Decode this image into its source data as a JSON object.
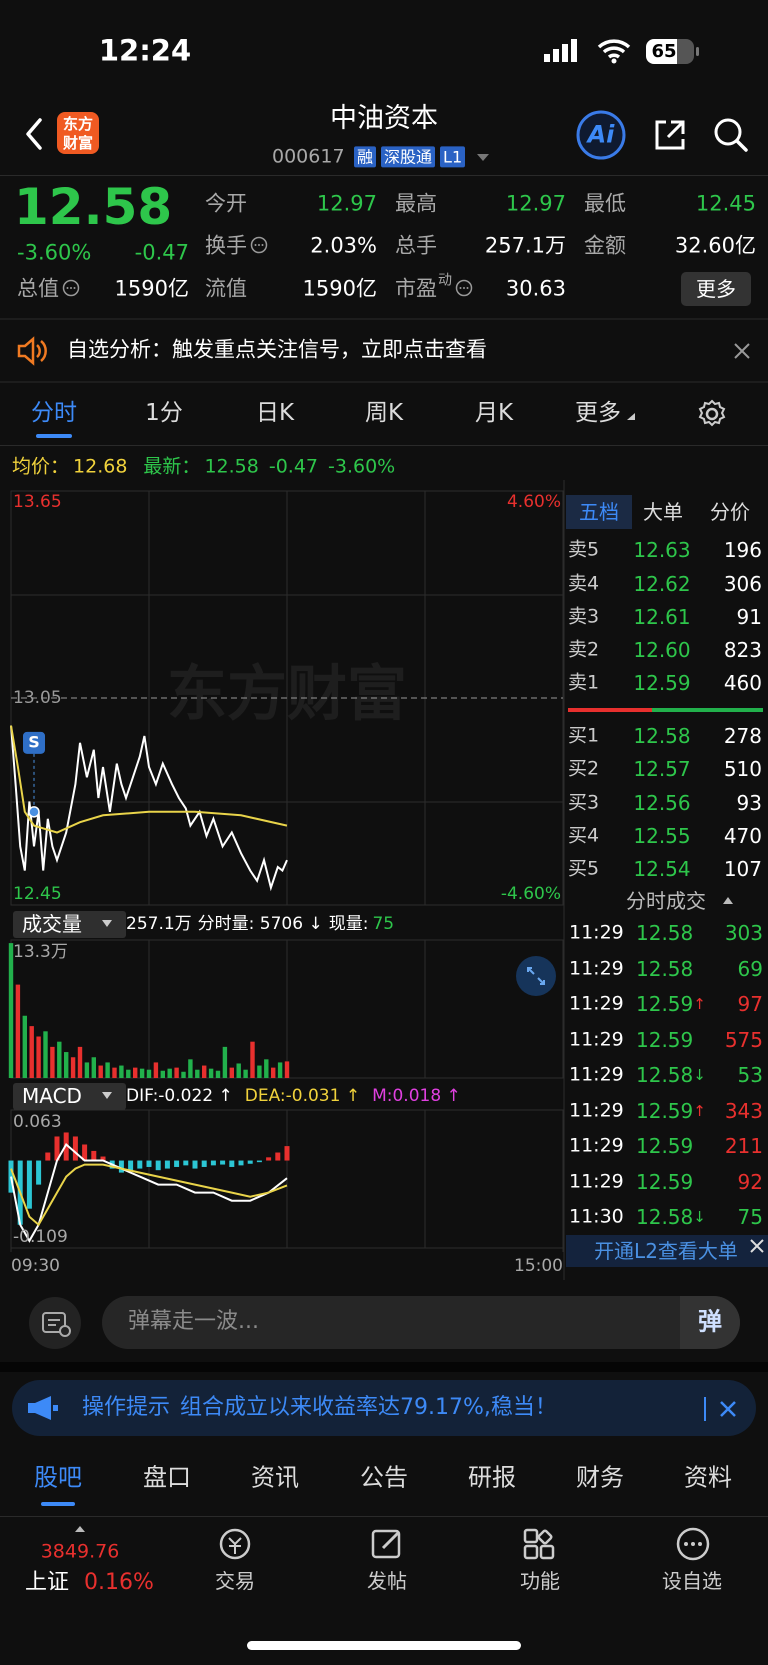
{
  "status_bar": {
    "time": "12:24",
    "battery": "65"
  },
  "header": {
    "logo": [
      "东方",
      "财富"
    ],
    "title": "中油资本",
    "code": "000617",
    "badges": [
      "融",
      "深股通",
      "L1"
    ],
    "ai": "Ai"
  },
  "quote": {
    "price": "12.58",
    "change_pct": "-3.60%",
    "change": "-0.47",
    "stats": [
      {
        "label": "今开",
        "value": "12.97",
        "tone": "down"
      },
      {
        "label": "最高",
        "value": "12.97",
        "tone": "down"
      },
      {
        "label": "最低",
        "value": "12.45",
        "tone": "down"
      },
      {
        "label": "换手",
        "value": "2.03%",
        "icon": true
      },
      {
        "label": "总手",
        "value": "257.1万"
      },
      {
        "label": "金额",
        "value": "32.60亿"
      },
      {
        "label": "总值",
        "value": "1590亿",
        "icon": true
      },
      {
        "label": "流值",
        "value": "1590亿"
      },
      {
        "label": "市盈",
        "sup": "动",
        "value": "30.63",
        "icon": true
      }
    ],
    "more": "更多"
  },
  "banner": {
    "text": "自选分析：触发重点关注信号，立即点击查看"
  },
  "tabs": [
    "分时",
    "1分",
    "日K",
    "周K",
    "月K",
    "更多"
  ],
  "info_line": {
    "avg_label": "均价：",
    "avg": "12.68",
    "last_label": "最新：",
    "last": "12.58",
    "change": "-0.47",
    "pct": "-3.60%"
  },
  "watermark": "东方财富",
  "chart_data": [
    {
      "type": "line",
      "xlim": [
        0,
        240
      ],
      "xticks": [
        {
          "value": 0,
          "label": "09:30"
        },
        {
          "value": 240,
          "label": "15:00"
        }
      ],
      "ylim": [
        12.45,
        13.65
      ],
      "yticks": [
        13.65,
        13.05,
        12.45
      ],
      "ytick_colors": [
        "#e8302e",
        "#9a9a9a",
        "#2ec64b"
      ],
      "right_labels": [
        "4.60%",
        "-4.60%"
      ],
      "series": [
        {
          "color": "#ffffff",
          "x": [
            0,
            2,
            4,
            6,
            8,
            10,
            12,
            14,
            16,
            18,
            20,
            24,
            28,
            30,
            33,
            36,
            38,
            40,
            43,
            46,
            48,
            50,
            53,
            56,
            58,
            60,
            63,
            66,
            70,
            73,
            76,
            78,
            82,
            85,
            88,
            92,
            96,
            100,
            104,
            107,
            110,
            113,
            116,
            118,
            120
          ],
          "values": [
            12.97,
            12.8,
            12.62,
            12.55,
            12.75,
            12.62,
            12.72,
            12.55,
            12.7,
            12.62,
            12.58,
            12.66,
            12.8,
            12.92,
            12.82,
            12.9,
            12.76,
            12.85,
            12.72,
            12.86,
            12.8,
            12.76,
            12.82,
            12.88,
            12.94,
            12.85,
            12.8,
            12.86,
            12.8,
            12.76,
            12.73,
            12.68,
            12.72,
            12.65,
            12.7,
            12.62,
            12.66,
            12.6,
            12.55,
            12.52,
            12.58,
            12.5,
            12.56,
            12.55,
            12.58
          ]
        },
        {
          "color": "#e9d44a",
          "x": [
            0,
            3,
            6,
            10,
            15,
            20,
            30,
            40,
            60,
            80,
            100,
            120
          ],
          "values": [
            12.97,
            12.85,
            12.72,
            12.68,
            12.67,
            12.66,
            12.69,
            12.71,
            12.72,
            12.72,
            12.71,
            12.68
          ]
        }
      ],
      "markers": [
        {
          "label": "S",
          "x": 10,
          "value": 12.72
        }
      ]
    },
    {
      "type": "bar",
      "xlim": [
        0,
        240
      ],
      "ylim": [
        0,
        133000
      ],
      "yticks": [
        {
          "value": 133000,
          "label": "13.3万"
        }
      ],
      "x": [
        0,
        3,
        6,
        9,
        12,
        15,
        18,
        21,
        24,
        27,
        30,
        33,
        36,
        39,
        42,
        45,
        48,
        51,
        54,
        57,
        60,
        63,
        66,
        69,
        72,
        75,
        78,
        81,
        84,
        87,
        90,
        93,
        96,
        99,
        102,
        105,
        108,
        111,
        114,
        117,
        120
      ],
      "values": [
        130000,
        90000,
        60000,
        50000,
        40000,
        45000,
        30000,
        35000,
        25000,
        20000,
        30000,
        15000,
        20000,
        12000,
        15000,
        10000,
        12000,
        8000,
        10000,
        9000,
        8000,
        15000,
        7000,
        9000,
        10000,
        6000,
        18000,
        8000,
        12000,
        9000,
        7000,
        30000,
        10000,
        14000,
        8000,
        35000,
        12000,
        18000,
        10000,
        15000,
        16000
      ],
      "colors": [
        "#22b14c",
        "#e8302e",
        "#22b14c",
        "#e8302e",
        "#e8302e",
        "#22b14c",
        "#e8302e",
        "#22b14c",
        "#22b14c",
        "#e8302e",
        "#e8302e",
        "#22b14c",
        "#22b14c",
        "#e8302e",
        "#22b14c",
        "#e8302e",
        "#22b14c",
        "#22b14c",
        "#e8302e",
        "#22b14c",
        "#22b14c",
        "#e8302e",
        "#22b14c",
        "#22b14c",
        "#e8302e",
        "#22b14c",
        "#22b14c",
        "#22b14c",
        "#e8302e",
        "#22b14c",
        "#22b14c",
        "#22b14c",
        "#e8302e",
        "#22b14c",
        "#22b14c",
        "#e8302e",
        "#22b14c",
        "#22b14c",
        "#e8302e",
        "#22b14c",
        "#e8302e"
      ]
    },
    {
      "type": "macd",
      "xlim": [
        0,
        240
      ],
      "ylim": [
        -0.109,
        0.063
      ],
      "yticks": [
        0.063,
        -0.109
      ],
      "lines": [
        {
          "color": "#ffffff",
          "x": [
            0,
            4,
            8,
            12,
            16,
            20,
            24,
            28,
            32,
            40,
            48,
            56,
            64,
            72,
            80,
            88,
            96,
            104,
            112,
            120
          ],
          "values": [
            -0.02,
            -0.08,
            -0.1,
            -0.08,
            -0.04,
            0,
            0.02,
            0.01,
            0,
            0,
            -0.01,
            -0.02,
            -0.03,
            -0.03,
            -0.04,
            -0.04,
            -0.05,
            -0.05,
            -0.04,
            -0.022
          ]
        },
        {
          "color": "#e9d44a",
          "x": [
            0,
            4,
            8,
            12,
            16,
            20,
            24,
            28,
            32,
            40,
            48,
            56,
            64,
            72,
            80,
            88,
            96,
            104,
            112,
            120
          ],
          "values": [
            -0.01,
            -0.04,
            -0.07,
            -0.08,
            -0.06,
            -0.04,
            -0.02,
            -0.01,
            -0.005,
            -0.005,
            -0.01,
            -0.015,
            -0.02,
            -0.025,
            -0.03,
            -0.035,
            -0.04,
            -0.045,
            -0.04,
            -0.031
          ]
        }
      ],
      "bars": {
        "up_color": "#e8302e",
        "down_color": "#2cc6d4",
        "x": [
          0,
          4,
          8,
          12,
          16,
          20,
          24,
          28,
          32,
          36,
          40,
          44,
          48,
          52,
          56,
          60,
          64,
          68,
          72,
          76,
          80,
          84,
          88,
          92,
          96,
          100,
          104,
          108,
          112,
          116,
          120
        ],
        "values": [
          -0.04,
          -0.08,
          -0.06,
          -0.03,
          0.01,
          0.03,
          0.035,
          0.03,
          0.02,
          0.012,
          0.005,
          -0.01,
          -0.015,
          -0.012,
          -0.01,
          -0.008,
          -0.012,
          -0.01,
          -0.008,
          -0.006,
          -0.01,
          -0.008,
          -0.006,
          -0.005,
          -0.008,
          -0.006,
          -0.004,
          -0.002,
          0.004,
          0.01,
          0.018
        ]
      }
    }
  ],
  "volume_header": {
    "title": "成交量",
    "total": "257.1万",
    "minute": "分时量: 5706 ↓",
    "now_label": "现量:",
    "now": "75"
  },
  "macd_header": {
    "title": "MACD",
    "dif": "DIF:-0.022 ↑",
    "dea": "DEA:-0.031 ↑",
    "m": "M:0.018 ↑"
  },
  "order_book": {
    "tabs": [
      "五档",
      "大单",
      "分价"
    ],
    "asks": [
      {
        "label": "卖5",
        "price": "12.63",
        "vol": "196"
      },
      {
        "label": "卖4",
        "price": "12.62",
        "vol": "306"
      },
      {
        "label": "卖3",
        "price": "12.61",
        "vol": "91"
      },
      {
        "label": "卖2",
        "price": "12.60",
        "vol": "823"
      },
      {
        "label": "卖1",
        "price": "12.59",
        "vol": "460"
      }
    ],
    "bids": [
      {
        "label": "买1",
        "price": "12.58",
        "vol": "278"
      },
      {
        "label": "买2",
        "price": "12.57",
        "vol": "510"
      },
      {
        "label": "买3",
        "price": "12.56",
        "vol": "93"
      },
      {
        "label": "买4",
        "price": "12.55",
        "vol": "470"
      },
      {
        "label": "买5",
        "price": "12.54",
        "vol": "107"
      }
    ],
    "trades_title": "分时成交",
    "trades": [
      {
        "time": "11:29",
        "price": "12.58",
        "vol": "303",
        "color": "#2ec64b"
      },
      {
        "time": "11:29",
        "price": "12.58",
        "vol": "69",
        "color": "#2ec64b"
      },
      {
        "time": "11:29",
        "price": "12.59",
        "arrow": "↑",
        "vol": "97",
        "color": "#e8302e"
      },
      {
        "time": "11:29",
        "price": "12.59",
        "vol": "575",
        "color": "#e8302e"
      },
      {
        "time": "11:29",
        "price": "12.58",
        "arrow": "↓",
        "vol": "53",
        "color": "#2ec64b"
      },
      {
        "time": "11:29",
        "price": "12.59",
        "arrow": "↑",
        "vol": "343",
        "color": "#e8302e"
      },
      {
        "time": "11:29",
        "price": "12.59",
        "vol": "211",
        "color": "#e8302e"
      },
      {
        "time": "11:29",
        "price": "12.59",
        "vol": "92",
        "color": "#e8302e"
      },
      {
        "time": "11:30",
        "price": "12.58",
        "arrow": "↓",
        "vol": "75",
        "color": "#2ec64b"
      }
    ],
    "l2": "开通L2查看大单"
  },
  "comment": {
    "placeholder": "弹幕走一波...",
    "button": "弹"
  },
  "tip": {
    "label": "操作提示",
    "text": "组合成立以来收益率达79.17%,稳当！"
  },
  "bottom_tabs": [
    "股吧",
    "盘口",
    "资讯",
    "公告",
    "研报",
    "财务",
    "资料"
  ],
  "nav": {
    "index_value": "3849.76",
    "index_name": "上证",
    "index_pct": "0.16%",
    "items": [
      "交易",
      "发帖",
      "功能",
      "设自选"
    ]
  }
}
